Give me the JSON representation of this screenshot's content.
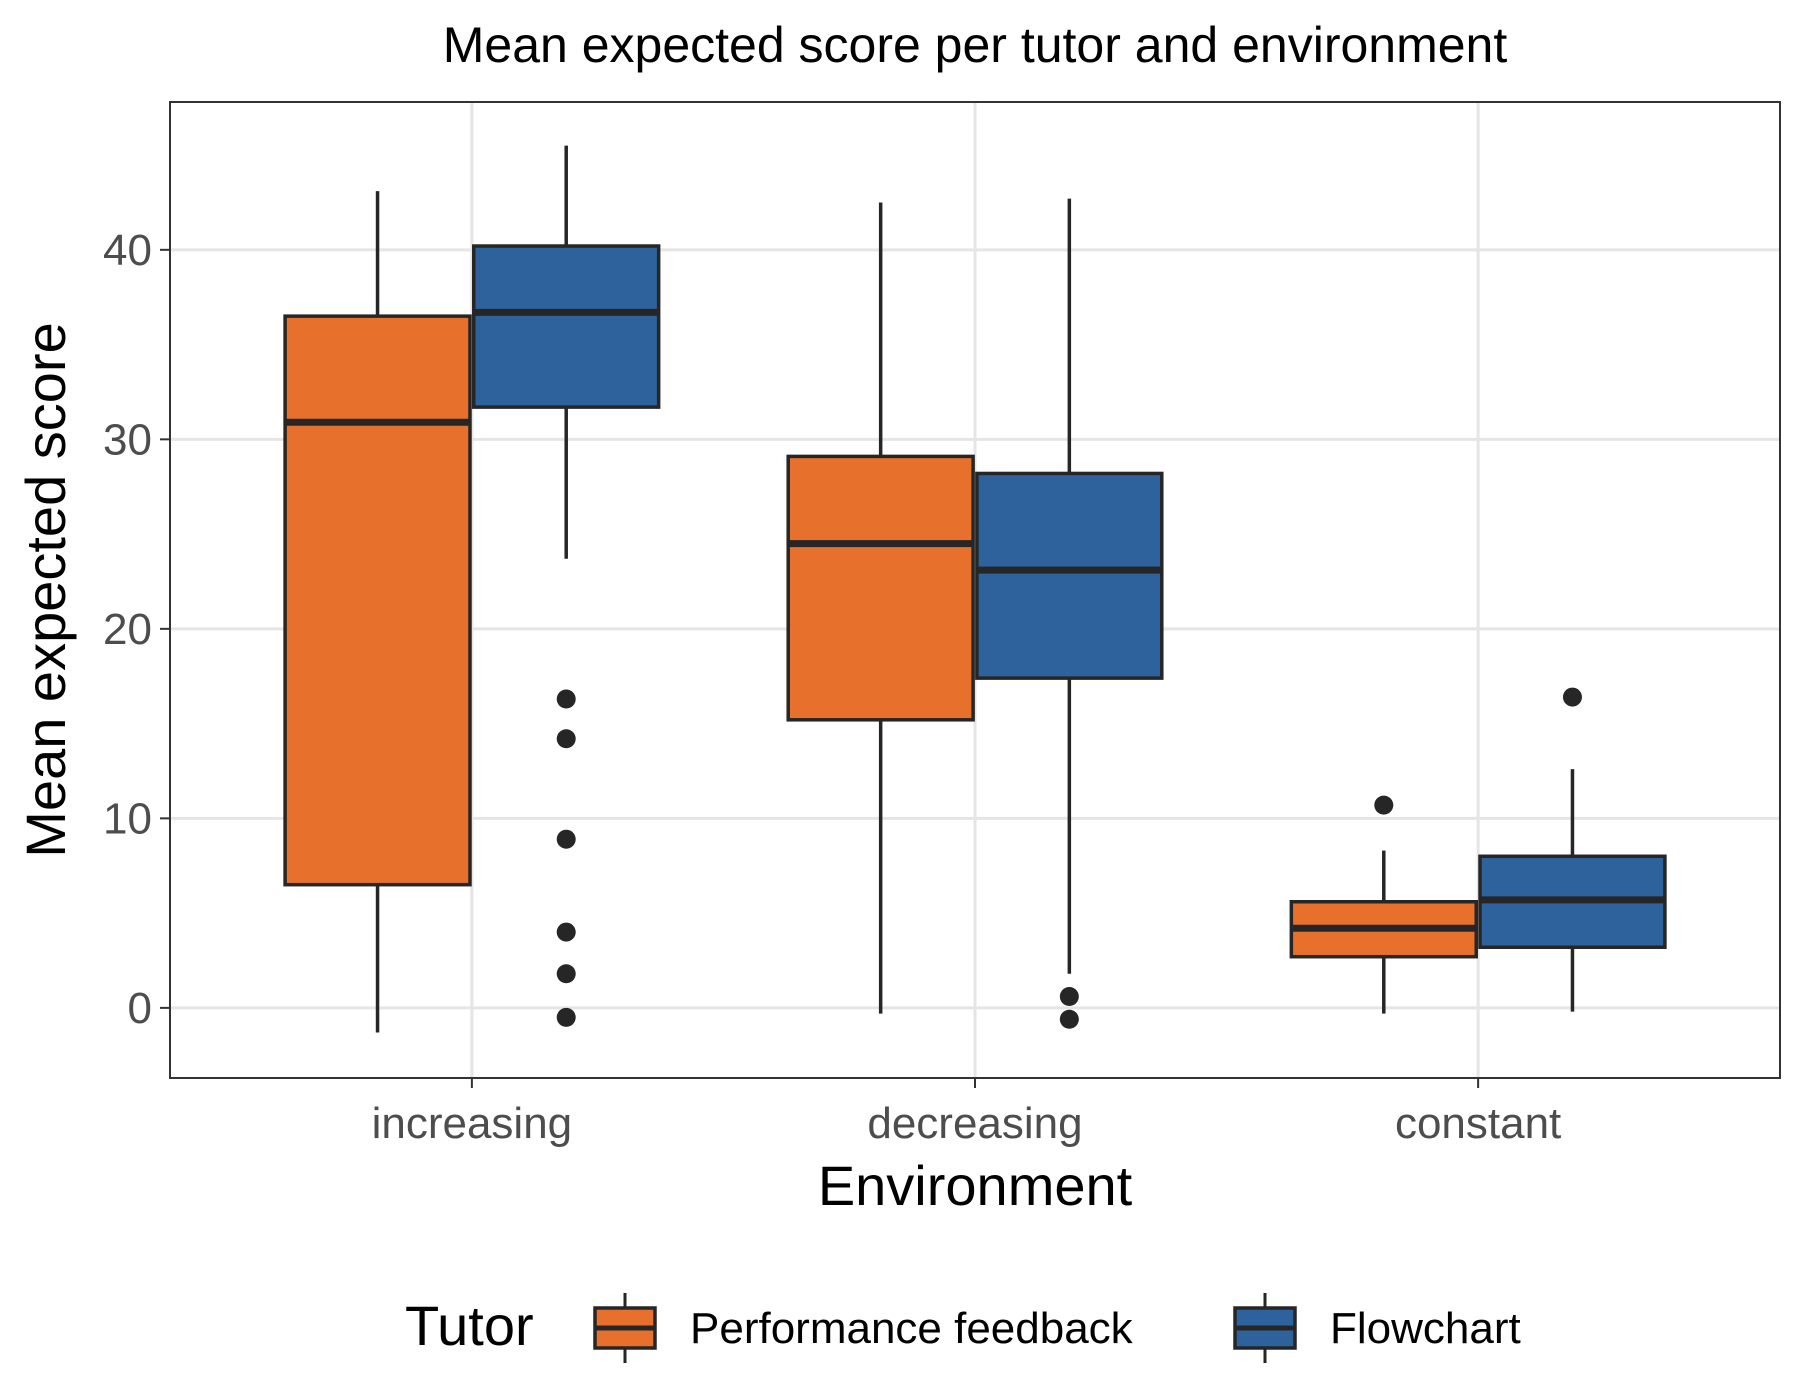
{
  "chart_data": {
    "type": "box",
    "title": "Mean expected score per tutor and environment",
    "xlabel": "Environment",
    "ylabel": "Mean expected score",
    "categories": [
      "increasing",
      "decreasing",
      "constant"
    ],
    "ylim": [
      -3.7,
      47.8
    ],
    "yticks": [
      0,
      10,
      20,
      30,
      40
    ],
    "grid": true,
    "legend": {
      "title": "Tutor",
      "position": "bottom",
      "entries": [
        "Performance feedback",
        "Flowchart"
      ]
    },
    "colors": {
      "Performance feedback": "#E8702D",
      "Flowchart": "#2E629D",
      "outline": "#262626",
      "grid": "#E5E5E5"
    },
    "series": [
      {
        "name": "Performance feedback",
        "boxes": [
          {
            "category": "increasing",
            "whisker_low": -1.3,
            "q1": 6.5,
            "median": 30.9,
            "q3": 36.5,
            "whisker_high": 43.1,
            "outliers": []
          },
          {
            "category": "decreasing",
            "whisker_low": -0.3,
            "q1": 15.2,
            "median": 24.5,
            "q3": 29.1,
            "whisker_high": 42.5,
            "outliers": []
          },
          {
            "category": "constant",
            "whisker_low": -0.3,
            "q1": 2.7,
            "median": 4.2,
            "q3": 5.6,
            "whisker_high": 8.3,
            "outliers": [
              10.7
            ]
          }
        ]
      },
      {
        "name": "Flowchart",
        "boxes": [
          {
            "category": "increasing",
            "whisker_low": 23.7,
            "q1": 31.7,
            "median": 36.7,
            "q3": 40.2,
            "whisker_high": 45.5,
            "outliers": [
              16.3,
              14.2,
              8.9,
              4.0,
              1.8,
              -0.5
            ]
          },
          {
            "category": "decreasing",
            "whisker_low": 1.8,
            "q1": 17.4,
            "median": 23.1,
            "q3": 28.2,
            "whisker_high": 42.7,
            "outliers": [
              0.6,
              -0.6
            ]
          },
          {
            "category": "constant",
            "whisker_low": -0.2,
            "q1": 3.2,
            "median": 5.7,
            "q3": 8.0,
            "whisker_high": 12.6,
            "outliers": [
              16.4
            ]
          }
        ]
      }
    ]
  }
}
